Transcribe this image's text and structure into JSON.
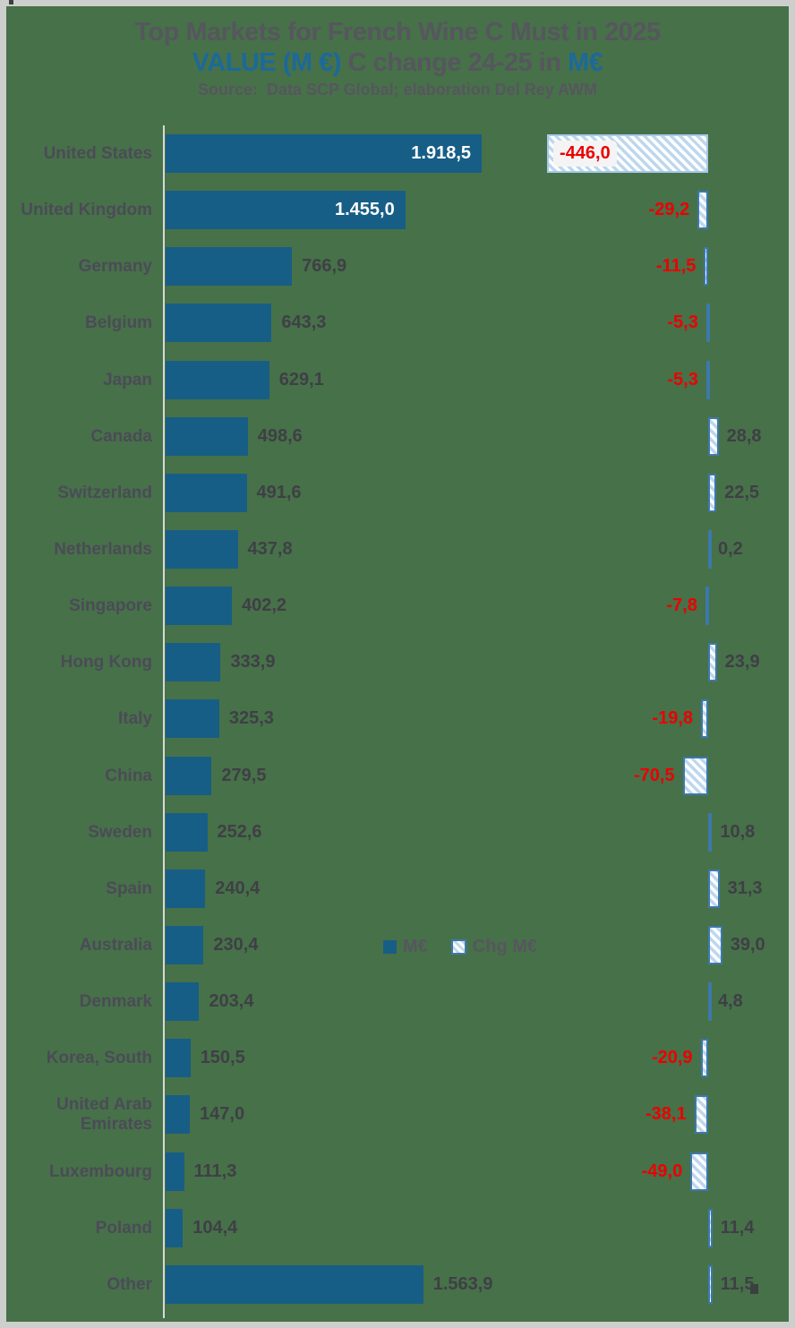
{
  "header": {
    "title": "Top Markets for French Wine C Must in 2025",
    "subtitle": {
      "part1": "VALUE (M €)",
      "part2": " C change 24-25 in ",
      "part3": "M€"
    },
    "source": "Source:  Data SCP Global; elaboration Del Rey AWM"
  },
  "legend": {
    "items": [
      {
        "label": "M€",
        "swatch": "solid-blue-square"
      },
      {
        "label": "Chg M€",
        "swatch": "hatched-square"
      }
    ]
  },
  "colors": {
    "bg": "#477149",
    "frame": "#CCCFCC",
    "bar_blue": "#175E86",
    "title_blue": "#1C699A",
    "title_gray": "#56565E",
    "label_gray": "#4B4B57",
    "value_gray": "#3F3F46",
    "neg_red": "#EB0000",
    "chg_border": "#3D78AC",
    "chg_border_light": "#A6C9E8",
    "chg_stripe": "#BDD7EE"
  },
  "chart_data": {
    "type": "bar",
    "orientation": "horizontal",
    "title": "Top Markets for French Wine C Must in 2025",
    "subtitle": "VALUE (M €) C change 24-25 in M€",
    "source": "Source:  Data SCP Global; elaboration Del Rey AWM",
    "grid": false,
    "legend_position": "center-of-plot",
    "legend_entries": [
      "M€",
      "Chg M€"
    ],
    "value_axis_range": [
      0,
      1918.5
    ],
    "change_axis_note": "secondary axis, zero aligned near right edge; negative change bars extend left, positive extend right",
    "categories": [
      "United States",
      "United Kingdom",
      "Germany",
      "Belgium",
      "Japan",
      "Canada",
      "Switzerland",
      "Netherlands",
      "Singapore",
      "Hong Kong",
      "Italy",
      "China",
      "Sweden",
      "Spain",
      "Australia",
      "Denmark",
      "Korea, South",
      "United Arab Emirates",
      "Luxembourg",
      "Poland",
      "Other"
    ],
    "series": [
      {
        "name": "M€",
        "values": [
          1918.5,
          1455.0,
          766.9,
          643.3,
          629.1,
          498.6,
          491.6,
          437.8,
          402.2,
          333.9,
          325.3,
          279.5,
          252.6,
          240.4,
          230.4,
          203.4,
          150.5,
          147.0,
          111.3,
          104.4,
          1563.9
        ]
      },
      {
        "name": "Chg M€",
        "values": [
          -446.0,
          -29.2,
          -11.5,
          -5.3,
          -5.3,
          28.8,
          22.5,
          0.2,
          -7.8,
          23.9,
          -19.8,
          -70.5,
          10.8,
          31.3,
          39.0,
          4.8,
          -20.9,
          -38.1,
          -49.0,
          11.4,
          11.5
        ]
      }
    ],
    "value_labels": [
      "1.918,5",
      "1.455,0",
      "766,9",
      "643,3",
      "629,1",
      "498,6",
      "491,6",
      "437,8",
      "402,2",
      "333,9",
      "325,3",
      "279,5",
      "252,6",
      "240,4",
      "230,4",
      "203,4",
      "150,5",
      "147,0",
      "111,3",
      "104,4",
      "1.563,9"
    ],
    "change_labels": [
      "-446,0",
      "-29,2",
      "-11,5",
      "-5,3",
      "-5,3",
      "28,8",
      "22,5",
      "0,2",
      "-7,8",
      "23,9",
      "-19,8",
      "-70,5",
      "10,8",
      "31,3",
      "39,0",
      "4,8",
      "-20,9",
      "-38,1",
      "-49,0",
      "11,4",
      "11,5"
    ],
    "value_label_inside_bar": [
      "United States",
      "United Kingdom"
    ],
    "change_label_boxed_inside_bar": [
      "United States"
    ]
  }
}
